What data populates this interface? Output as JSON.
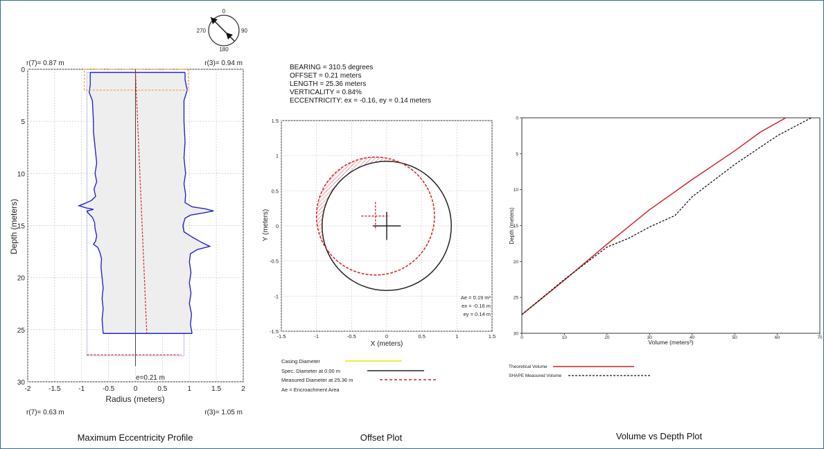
{
  "colors": {
    "profile": "#2323d6",
    "measured": "#d42020",
    "spec": "#222222",
    "casing": "#e8e800",
    "orange": "#f0a030",
    "fill": "#eeeeee",
    "grid": "#cccccc",
    "frame": "#2e6e8e"
  },
  "compass": {
    "n": "0",
    "e": "90",
    "s": "180",
    "w": "270"
  },
  "captions": {
    "profile": "Maximum Eccentricity Profile",
    "offset": "Offset Plot",
    "volume": "Volume vs Depth Plot"
  },
  "chart_data": [
    {
      "type": "line",
      "name": "eccentricity-profile",
      "xlabel": "Radius (meters)",
      "ylabel": "Depth (meters)",
      "xlim": [
        -2,
        2
      ],
      "ylim": [
        30,
        0
      ],
      "xticks": [
        -2,
        -1.5,
        -1,
        -0.5,
        0,
        0.5,
        1,
        1.5,
        2
      ],
      "yticks": [
        0,
        5,
        10,
        15,
        20,
        25,
        30
      ],
      "grid": true,
      "corner_labels": {
        "top_left": "r(7)= 0.87 m",
        "top_right": "r(3)= 0.94 m",
        "bottom_left": "r(7)= 0.63 m",
        "bottom_right": "r(3)= 1.05 m"
      },
      "annotation": "e=0.21 m",
      "bottom_depth": 25.36,
      "casing_box": {
        "x": [
          -0.95,
          0.98
        ],
        "depth": [
          0,
          2
        ]
      },
      "spec_bounds": {
        "x": [
          -0.9,
          0.9
        ],
        "depth": [
          0.3,
          27.5
        ]
      },
      "left_wall": [
        [
          -0.84,
          0.3
        ],
        [
          -0.84,
          1.5
        ],
        [
          -0.86,
          2.2
        ],
        [
          -0.8,
          3
        ],
        [
          -0.79,
          4
        ],
        [
          -0.78,
          5
        ],
        [
          -0.78,
          6
        ],
        [
          -0.76,
          7
        ],
        [
          -0.74,
          8
        ],
        [
          -0.72,
          9
        ],
        [
          -0.75,
          10
        ],
        [
          -0.72,
          10.8
        ],
        [
          -0.77,
          11.5
        ],
        [
          -0.74,
          12.2
        ],
        [
          -0.82,
          12.6
        ],
        [
          -0.95,
          12.9
        ],
        [
          -1.05,
          13.1
        ],
        [
          -0.92,
          13.3
        ],
        [
          -0.78,
          13.45
        ],
        [
          -0.9,
          13.6
        ],
        [
          -0.88,
          13.8
        ],
        [
          -0.8,
          14.2
        ],
        [
          -0.76,
          14.7
        ],
        [
          -0.75,
          15.3
        ],
        [
          -0.72,
          16
        ],
        [
          -0.74,
          16.5
        ],
        [
          -0.78,
          16.8
        ],
        [
          -0.7,
          17.1
        ],
        [
          -0.66,
          17.6
        ],
        [
          -0.63,
          18.2
        ],
        [
          -0.64,
          19
        ],
        [
          -0.62,
          20
        ],
        [
          -0.6,
          21
        ],
        [
          -0.62,
          22
        ],
        [
          -0.6,
          23
        ],
        [
          -0.62,
          24
        ],
        [
          -0.6,
          25.36
        ]
      ],
      "right_wall": [
        [
          0.92,
          0.3
        ],
        [
          0.92,
          1
        ],
        [
          0.96,
          2
        ],
        [
          0.9,
          3
        ],
        [
          0.9,
          5
        ],
        [
          0.92,
          7
        ],
        [
          0.9,
          8.5
        ],
        [
          0.93,
          10
        ],
        [
          0.9,
          11
        ],
        [
          0.93,
          12
        ],
        [
          0.92,
          12.8
        ],
        [
          1.05,
          13.2
        ],
        [
          1.3,
          13.4
        ],
        [
          1.45,
          13.6
        ],
        [
          1.25,
          13.8
        ],
        [
          1.02,
          14
        ],
        [
          0.92,
          14.3
        ],
        [
          0.88,
          15
        ],
        [
          0.9,
          15.6
        ],
        [
          1.05,
          16.1
        ],
        [
          1.22,
          16.6
        ],
        [
          1.38,
          17
        ],
        [
          1.15,
          17.3
        ],
        [
          1.02,
          17.7
        ],
        [
          1.0,
          18.5
        ],
        [
          1.03,
          19.5
        ],
        [
          1.0,
          20.5
        ],
        [
          1.03,
          21.5
        ],
        [
          1.0,
          22.5
        ],
        [
          1.04,
          23.5
        ],
        [
          1.02,
          24.5
        ],
        [
          1.05,
          25.36
        ]
      ],
      "center_line": [
        [
          0,
          0
        ],
        [
          0,
          28.5
        ]
      ],
      "eccentric_line": [
        [
          0,
          0.3
        ],
        [
          0.21,
          25.36
        ]
      ],
      "bottom_line": {
        "x": [
          -0.9,
          0.85
        ],
        "depth": 27.4
      }
    },
    {
      "type": "scatter",
      "name": "offset-plot",
      "title_lines": [
        "BEARING = 310.5 degrees",
        "OFFSET = 0.21 meters",
        "LENGTH = 25.36 meters",
        "VERTICALITY = 0.84%",
        "ECCENTRICITY: ex = -0.16, ey = 0.14 meters"
      ],
      "xlabel": "X (meters)",
      "ylabel": "Y (meters)",
      "xlim": [
        -1.5,
        1.5
      ],
      "ylim": [
        -1.5,
        1.5
      ],
      "xticks": [
        -1.5,
        -1,
        -0.5,
        0,
        0.5,
        1,
        1.5
      ],
      "yticks": [
        -1.5,
        -1,
        -0.5,
        0,
        0.5,
        1,
        1.5
      ],
      "grid": true,
      "spec_circle": {
        "cx": 0,
        "cy": 0,
        "r": 0.92
      },
      "measured_circle": {
        "cx": -0.16,
        "cy": 0.14,
        "r": 0.84
      },
      "annotations": [
        "Ae = 0.19 m²",
        "ex = -0.16 m",
        "ey = 0.14 m"
      ],
      "legend": [
        {
          "label": "Casing Diameter",
          "color": "#e8e800",
          "style": "solid"
        },
        {
          "label": "Spec. Diameter at 0.00 m",
          "color": "#222222",
          "style": "solid"
        },
        {
          "label": "Measured Diameter at 25.36 m",
          "color": "#d42020",
          "style": "dashed"
        },
        {
          "label": "Ae = Encroachment Area",
          "color": "",
          "style": "none"
        }
      ]
    },
    {
      "type": "line",
      "name": "volume-depth",
      "xlabel": "Volume (meters³)",
      "ylabel": "Depth (meters)",
      "xlim": [
        0,
        70
      ],
      "ylim": [
        30,
        0
      ],
      "xticks": [
        0,
        10,
        20,
        30,
        40,
        50,
        60,
        70
      ],
      "yticks": [
        0,
        5,
        10,
        15,
        20,
        25,
        30
      ],
      "grid": false,
      "series": [
        {
          "name": "Theoretical Volume",
          "color": "#d42020",
          "style": "solid",
          "points": [
            [
              0,
              27.4
            ],
            [
              10,
              22.6
            ],
            [
              20,
              17.6
            ],
            [
              30,
              12.8
            ],
            [
              40,
              8.6
            ],
            [
              50,
              4.6
            ],
            [
              56,
              2
            ],
            [
              62,
              0
            ]
          ]
        },
        {
          "name": "SHAPE Measured Volume",
          "color": "#111111",
          "style": "dashed",
          "points": [
            [
              0,
              27.4
            ],
            [
              10,
              22.5
            ],
            [
              20,
              18.0
            ],
            [
              25,
              16.8
            ],
            [
              30,
              15.2
            ],
            [
              36,
              13.6
            ],
            [
              40,
              11.0
            ],
            [
              50,
              6.5
            ],
            [
              60,
              2.5
            ],
            [
              68,
              0
            ]
          ]
        }
      ]
    }
  ]
}
